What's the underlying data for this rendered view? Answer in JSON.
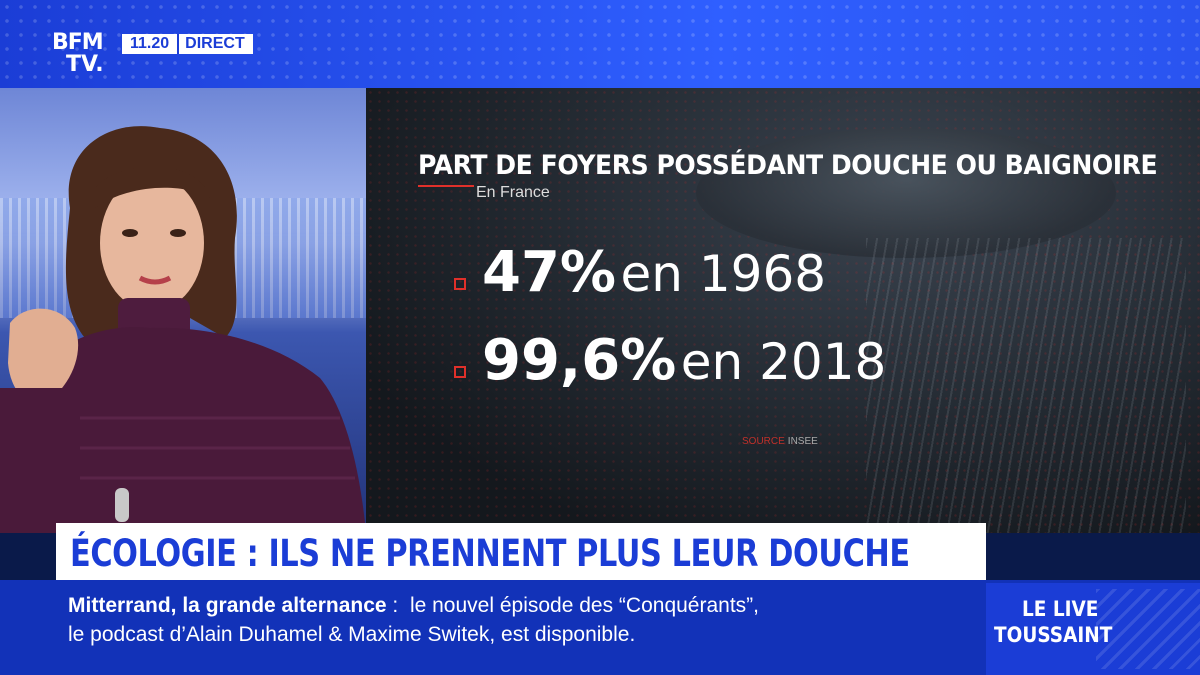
{
  "channel": {
    "logo_line1": "BFM",
    "logo_line2": "TV.",
    "time": "11.20",
    "live_label": "DIRECT"
  },
  "infographic": {
    "title": "PART DE FOYERS POSSÉDANT DOUCHE OU BAIGNOIRE",
    "subtitle": "En France",
    "stats": [
      {
        "value": "47%",
        "text": "en 1968"
      },
      {
        "value": "99,6%",
        "text": "en 2018"
      }
    ],
    "source_label": "SOURCE",
    "source": "INSEE"
  },
  "headline": "ÉCOLOGIE : ILS NE PRENNENT PLUS LEUR DOUCHE",
  "ticker": {
    "bold": "Mitterrand, la grande alternance",
    "sep": " : ",
    "line1_rest": " le nouvel épisode des “Conquérants”,",
    "line2": "le podcast d’Alain Duhamel & Maxime Switek, est disponible."
  },
  "promo": {
    "line1": "LE LIVE",
    "line2": "TOUSSAINT"
  },
  "colors": {
    "brand_blue": "#1b3dd6",
    "accent_red": "#e0302a"
  }
}
